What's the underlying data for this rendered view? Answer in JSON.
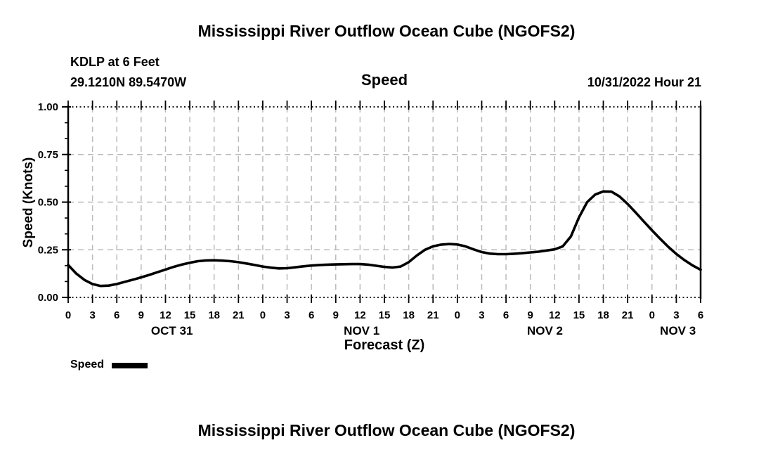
{
  "page": {
    "top_title": "Mississippi River Outflow Ocean Cube (NGOFS2)",
    "bottom_title": "Mississippi River Outflow Ocean Cube (NGOFS2)",
    "background": "#ffffff"
  },
  "header": {
    "station_line": "KDLP at 6 Feet",
    "coordinates_line": "29.1210N  89.5470W",
    "center_label": "Speed",
    "datetime_label": "10/31/2022 Hour 21"
  },
  "legend": {
    "label": "Speed",
    "swatch_color": "#000000"
  },
  "chart_data": {
    "type": "line",
    "title": "Speed",
    "xlabel": "Forecast (Z)",
    "ylabel": "Speed (Knots)",
    "xlim_hours": [
      0,
      78
    ],
    "ylim": [
      0.0,
      1.0
    ],
    "grid": true,
    "grid_color": "#bbbbbb",
    "line_color": "#000000",
    "yticks": [
      0.0,
      0.25,
      0.5,
      0.75,
      1.0
    ],
    "ytick_labels": [
      "0.00",
      "0.25",
      "0.50",
      "0.75",
      "1.00"
    ],
    "y_minor_divisions_per_major": 3,
    "xticks_hours": [
      0,
      3,
      6,
      9,
      12,
      15,
      18,
      21,
      24,
      27,
      30,
      33,
      36,
      39,
      42,
      45,
      48,
      51,
      54,
      57,
      60,
      63,
      66,
      69,
      72,
      75,
      78
    ],
    "xtick_labels": [
      "0",
      "3",
      "6",
      "9",
      "12",
      "15",
      "18",
      "21",
      "0",
      "3",
      "6",
      "9",
      "12",
      "15",
      "18",
      "21",
      "0",
      "3",
      "6",
      "9",
      "12",
      "15",
      "18",
      "21",
      "0",
      "3",
      "6"
    ],
    "date_labels": [
      {
        "label": "OCT 31",
        "center_hour": 12.8
      },
      {
        "label": "NOV 1",
        "center_hour": 36.2
      },
      {
        "label": "NOV 2",
        "center_hour": 58.8
      },
      {
        "label": "NOV 3",
        "center_hour": 75.2
      }
    ],
    "series": [
      {
        "name": "Speed",
        "color": "#000000",
        "x_hours": [
          0,
          1,
          2,
          3,
          4,
          5,
          6,
          7,
          8,
          9,
          10,
          11,
          12,
          13,
          14,
          15,
          16,
          17,
          18,
          19,
          20,
          21,
          22,
          23,
          24,
          25,
          26,
          27,
          28,
          29,
          30,
          31,
          32,
          33,
          34,
          35,
          36,
          37,
          38,
          39,
          40,
          41,
          42,
          43,
          44,
          45,
          46,
          47,
          48,
          49,
          50,
          51,
          52,
          53,
          54,
          55,
          56,
          57,
          58,
          59,
          60,
          61,
          62,
          63,
          64,
          65,
          66,
          67,
          68,
          69,
          70,
          71,
          72,
          73,
          74,
          75,
          76,
          77,
          78
        ],
        "values": [
          0.17,
          0.125,
          0.092,
          0.07,
          0.06,
          0.062,
          0.07,
          0.082,
          0.093,
          0.105,
          0.118,
          0.132,
          0.146,
          0.16,
          0.172,
          0.182,
          0.19,
          0.194,
          0.195,
          0.193,
          0.19,
          0.185,
          0.178,
          0.17,
          0.162,
          0.156,
          0.152,
          0.153,
          0.158,
          0.163,
          0.167,
          0.17,
          0.172,
          0.173,
          0.174,
          0.175,
          0.175,
          0.172,
          0.166,
          0.16,
          0.157,
          0.162,
          0.185,
          0.22,
          0.25,
          0.268,
          0.277,
          0.28,
          0.278,
          0.268,
          0.252,
          0.238,
          0.23,
          0.227,
          0.227,
          0.229,
          0.232,
          0.236,
          0.24,
          0.246,
          0.252,
          0.268,
          0.32,
          0.42,
          0.5,
          0.54,
          0.556,
          0.555,
          0.53,
          0.49,
          0.445,
          0.398,
          0.352,
          0.308,
          0.266,
          0.228,
          0.196,
          0.168,
          0.145
        ]
      }
    ]
  }
}
